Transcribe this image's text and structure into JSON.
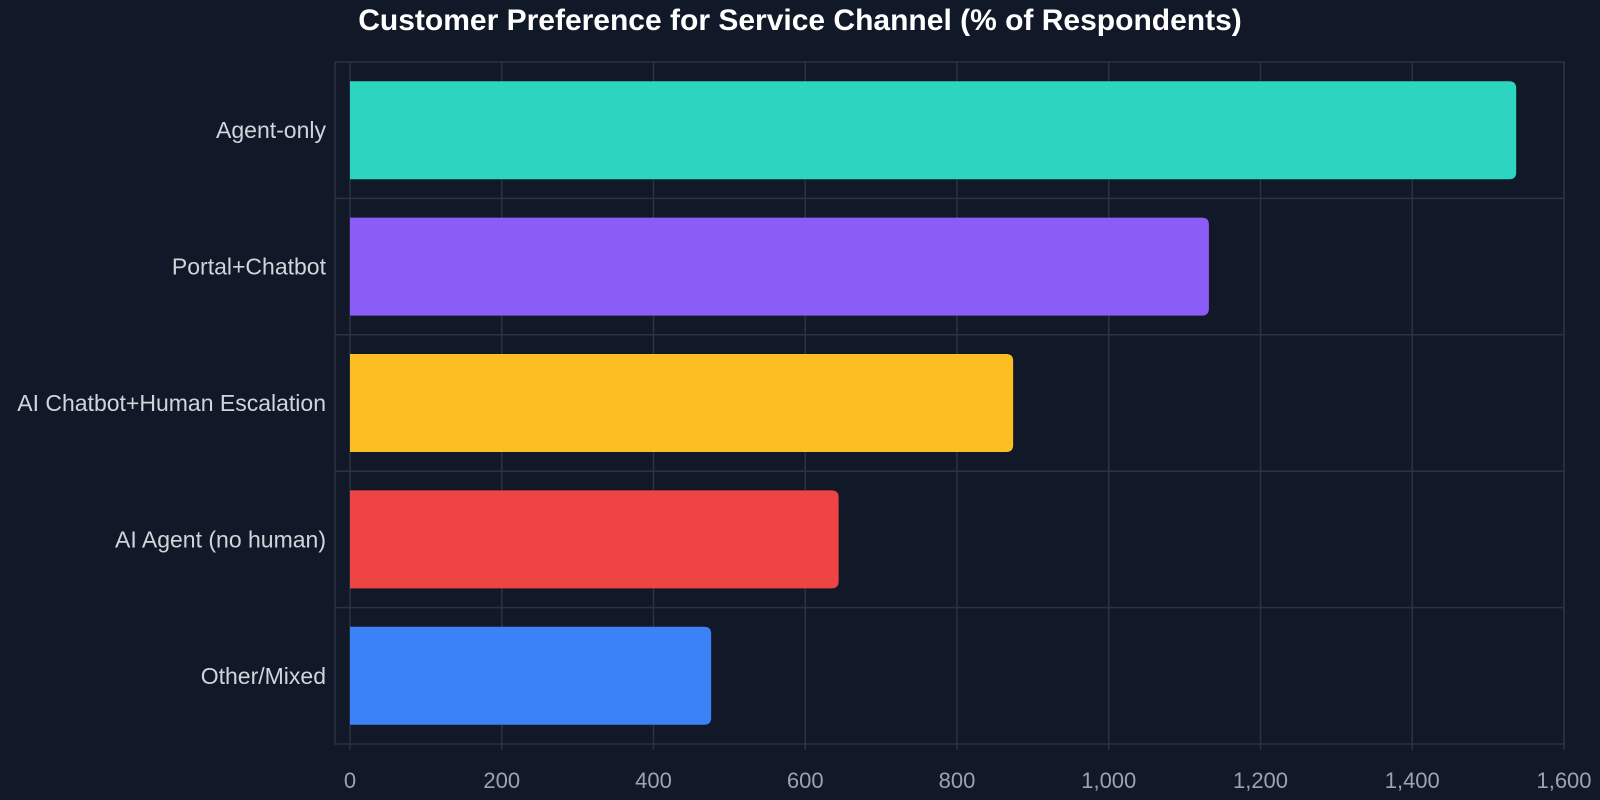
{
  "chart_data": {
    "type": "bar",
    "orientation": "horizontal",
    "title": "Customer Preference for Service Channel (% of Respondents)",
    "categories": [
      "Agent-only",
      "Portal+Chatbot",
      "AI Chatbot+Human Escalation",
      "AI Agent (no human)",
      "Other/Mixed"
    ],
    "values": [
      1537,
      1132,
      874,
      644,
      476
    ],
    "colors": [
      "#2dd4bf",
      "#8b5cf6",
      "#fbbf24",
      "#ef4444",
      "#3b82f6"
    ],
    "xlim": [
      0,
      1600
    ],
    "x_ticks": [
      "0",
      "200",
      "400",
      "600",
      "800",
      "1,000",
      "1,200",
      "1,400",
      "1,600"
    ],
    "x_tick_values": [
      0,
      200,
      400,
      600,
      800,
      1000,
      1200,
      1400,
      1600
    ],
    "grid": true,
    "legend": "none"
  }
}
